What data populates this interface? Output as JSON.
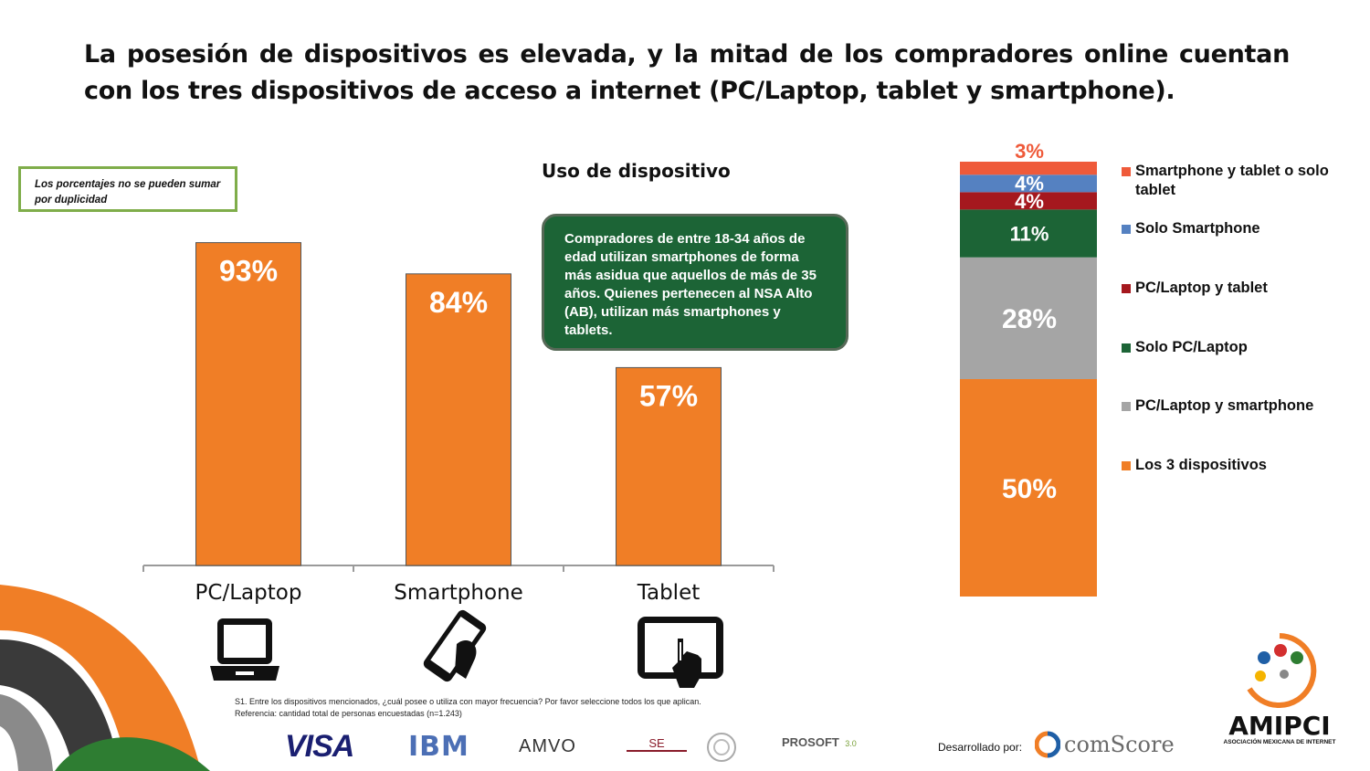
{
  "title": "La posesión de dispositivos es elevada, y la mitad de los compradores online cuentan con los tres dispositivos de acceso a internet (PC/Laptop, tablet y smartphone).",
  "note": "Los porcentajes no se pueden sumar por duplicidad",
  "callout": "Compradores de entre 18-34 años de edad utilizan smartphones de forma más asidua que aquellos de más de 35 años. Quienes pertenecen al NSA Alto (AB), utilizan más smartphones y tablets.",
  "footnote": {
    "line1": "S1. Entre los dispositivos mencionados, ¿cuál posee o utiliza con mayor frecuencia? Por favor seleccione todos los que aplican.",
    "line2": "Referencia: cantidad total de personas encuestadas (n=1.243)"
  },
  "developed_by": "Desarrollado por:",
  "logos": {
    "visa": "VISA",
    "ibm": "IBM",
    "amvo": "AMVO",
    "se": "SE",
    "prosoft": "PROSOFT",
    "prosoft_version": "3.0",
    "comscore": "comScore",
    "amipci": "AMIPCI",
    "amipci_sub": "ASOCIACIÓN MEXICANA DE INTERNET"
  },
  "icons": [
    "laptop-icon",
    "smartphone-icon",
    "tablet-icon"
  ],
  "colors": {
    "orange": "#f07e26",
    "gray": "#a5a5a5",
    "dark_green": "#1c6436",
    "dark_red": "#a5181e",
    "blue": "#5581c1",
    "red_orange": "#ef5a3a",
    "callout_bg": "#1c6436",
    "note_border": "#7fad4a"
  },
  "chart_data": [
    {
      "type": "bar",
      "title": "Uso de dispositivo",
      "categories": [
        "PC/Laptop",
        "Smartphone",
        "Tablet"
      ],
      "values": [
        93,
        84,
        57
      ],
      "labels": [
        "93%",
        "84%",
        "57%"
      ],
      "unit": "%",
      "ylim": [
        0,
        100
      ],
      "grid": false
    },
    {
      "type": "bar",
      "stacked": true,
      "series": [
        {
          "name": "Los 3 dispositivos",
          "value": 50,
          "label": "50%",
          "color": "#f07e26"
        },
        {
          "name": "PC/Laptop y smartphone",
          "value": 28,
          "label": "28%",
          "color": "#a5a5a5"
        },
        {
          "name": "Solo PC/Laptop",
          "value": 11,
          "label": "11%",
          "color": "#1c6436"
        },
        {
          "name": "PC/Laptop  y tablet",
          "value": 4,
          "label": "4%",
          "color": "#a5181e"
        },
        {
          "name": "Solo Smartphone",
          "value": 4,
          "label": "4%",
          "color": "#5581c1"
        },
        {
          "name": "Smartphone y tablet o solo tablet",
          "value": 3,
          "label": "3%",
          "color": "#ef5a3a"
        }
      ],
      "legend": "right",
      "ylim": [
        0,
        100
      ]
    }
  ]
}
